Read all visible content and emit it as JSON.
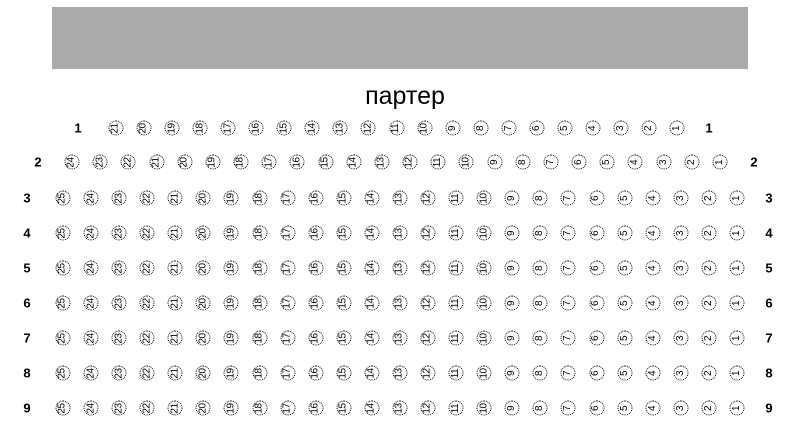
{
  "stage_label": "",
  "hall_title": "партер",
  "rows": [
    {
      "label": "1",
      "seats": [
        21,
        20,
        19,
        18,
        17,
        16,
        15,
        14,
        13,
        12,
        11,
        10,
        9,
        8,
        7,
        6,
        5,
        4,
        3,
        2,
        1
      ]
    },
    {
      "label": "2",
      "seats": [
        24,
        23,
        22,
        21,
        20,
        19,
        18,
        17,
        16,
        15,
        14,
        13,
        12,
        11,
        10,
        9,
        8,
        7,
        6,
        5,
        4,
        3,
        2,
        1
      ]
    },
    {
      "label": "3",
      "seats": [
        25,
        24,
        23,
        22,
        21,
        20,
        19,
        18,
        17,
        16,
        15,
        14,
        13,
        12,
        11,
        10,
        9,
        8,
        7,
        6,
        5,
        4,
        3,
        2,
        1
      ]
    },
    {
      "label": "4",
      "seats": [
        25,
        24,
        23,
        22,
        21,
        20,
        19,
        18,
        17,
        16,
        15,
        14,
        13,
        12,
        11,
        10,
        9,
        8,
        7,
        6,
        5,
        4,
        3,
        2,
        1
      ]
    },
    {
      "label": "5",
      "seats": [
        25,
        24,
        23,
        22,
        21,
        20,
        19,
        18,
        17,
        16,
        15,
        14,
        13,
        12,
        11,
        10,
        9,
        8,
        7,
        6,
        5,
        4,
        3,
        2,
        1
      ]
    },
    {
      "label": "6",
      "seats": [
        25,
        24,
        23,
        22,
        21,
        20,
        19,
        18,
        17,
        16,
        15,
        14,
        13,
        12,
        11,
        10,
        9,
        8,
        7,
        6,
        5,
        4,
        3,
        2,
        1
      ]
    },
    {
      "label": "7",
      "seats": [
        25,
        24,
        23,
        22,
        21,
        20,
        19,
        18,
        17,
        16,
        15,
        14,
        13,
        12,
        11,
        10,
        9,
        8,
        7,
        6,
        5,
        4,
        3,
        2,
        1
      ]
    },
    {
      "label": "8",
      "seats": [
        25,
        24,
        23,
        22,
        21,
        20,
        19,
        18,
        17,
        16,
        15,
        14,
        13,
        12,
        11,
        10,
        9,
        8,
        7,
        6,
        5,
        4,
        3,
        2,
        1
      ]
    },
    {
      "label": "9",
      "seats": [
        25,
        24,
        23,
        22,
        21,
        20,
        19,
        18,
        17,
        16,
        15,
        14,
        13,
        12,
        11,
        10,
        9,
        8,
        7,
        6,
        5,
        4,
        3,
        2,
        1
      ]
    }
  ],
  "colors": {
    "stage": "#aaa9ab"
  }
}
